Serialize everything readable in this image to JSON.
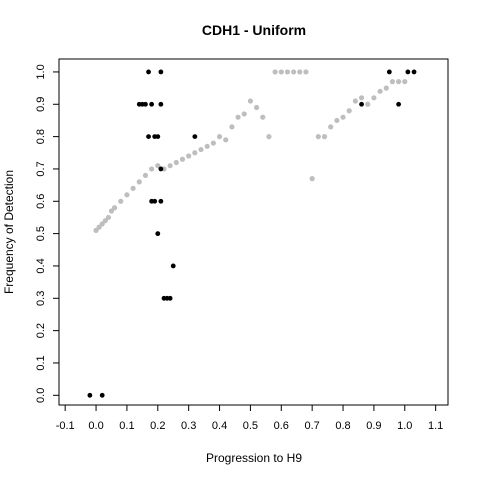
{
  "chart_data": {
    "type": "scatter",
    "title": "CDH1 - Uniform",
    "xlabel": "Progression to H9",
    "ylabel": "Frequency of Detection",
    "xlim": [
      -0.12,
      1.14
    ],
    "ylim": [
      -0.03,
      1.04
    ],
    "x_ticks": [
      "-0.1",
      "0.0",
      "0.1",
      "0.2",
      "0.3",
      "0.4",
      "0.5",
      "0.6",
      "0.7",
      "0.8",
      "0.9",
      "1.0",
      "1.1"
    ],
    "x_tick_values": [
      -0.1,
      0.0,
      0.1,
      0.2,
      0.3,
      0.4,
      0.5,
      0.6,
      0.7,
      0.8,
      0.9,
      1.0,
      1.1
    ],
    "y_ticks": [
      "0.0",
      "0.1",
      "0.2",
      "0.3",
      "0.4",
      "0.5",
      "0.6",
      "0.7",
      "0.8",
      "0.9",
      "1.0"
    ],
    "y_tick_values": [
      0.0,
      0.1,
      0.2,
      0.3,
      0.4,
      0.5,
      0.6,
      0.7,
      0.8,
      0.9,
      1.0
    ],
    "grid": false,
    "colors": {
      "black_points": "#000000",
      "gray_points": "#bebebe"
    },
    "black_points": {
      "x": [
        -0.02,
        0.02,
        0.14,
        0.15,
        0.16,
        0.17,
        0.17,
        0.18,
        0.19,
        0.18,
        0.19,
        0.2,
        0.21,
        0.21,
        0.2,
        0.21,
        0.21,
        0.22,
        0.23,
        0.24,
        0.25,
        0.32,
        0.86,
        0.95,
        0.98,
        1.01,
        1.03
      ],
      "y": [
        0.0,
        0.0,
        0.9,
        0.9,
        0.9,
        1.0,
        0.8,
        0.9,
        0.8,
        0.6,
        0.6,
        0.5,
        0.6,
        0.7,
        0.8,
        1.0,
        0.9,
        0.3,
        0.3,
        0.3,
        0.4,
        0.8,
        0.9,
        1.0,
        0.9,
        1.0,
        1.0
      ]
    },
    "gray_curve": {
      "x": [
        0.0,
        0.01,
        0.02,
        0.03,
        0.04,
        0.05,
        0.06,
        0.08,
        0.1,
        0.12,
        0.14,
        0.16,
        0.18,
        0.2,
        0.22,
        0.24,
        0.26,
        0.28,
        0.3,
        0.32,
        0.34,
        0.36,
        0.38,
        0.4,
        0.42,
        0.44,
        0.46,
        0.48,
        0.5,
        0.52,
        0.54,
        0.56,
        0.58,
        0.6,
        0.62,
        0.64,
        0.66,
        0.68,
        0.7,
        0.72,
        0.74,
        0.76,
        0.78,
        0.8,
        0.82,
        0.84,
        0.86,
        0.88,
        0.9,
        0.92,
        0.94,
        0.96,
        0.98,
        1.0
      ],
      "y": [
        0.51,
        0.52,
        0.53,
        0.54,
        0.55,
        0.57,
        0.58,
        0.6,
        0.62,
        0.64,
        0.66,
        0.68,
        0.7,
        0.71,
        0.7,
        0.71,
        0.72,
        0.73,
        0.74,
        0.75,
        0.76,
        0.77,
        0.78,
        0.8,
        0.79,
        0.83,
        0.86,
        0.87,
        0.91,
        0.89,
        0.86,
        0.8,
        1.0,
        1.0,
        1.0,
        1.0,
        1.0,
        1.0,
        0.67,
        0.8,
        0.8,
        0.83,
        0.85,
        0.86,
        0.88,
        0.91,
        0.92,
        0.9,
        0.92,
        0.94,
        0.95,
        0.97,
        0.97,
        0.97
      ]
    }
  }
}
